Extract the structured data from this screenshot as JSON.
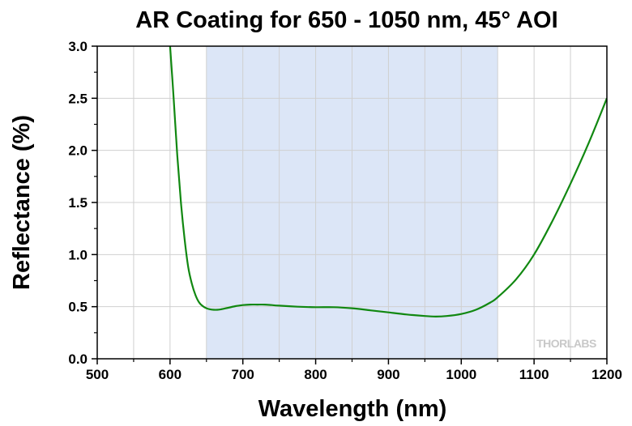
{
  "chart_data": {
    "type": "line",
    "title": "AR Coating for 650 - 1050 nm, 45° AOI",
    "xlabel": "Wavelength (nm)",
    "ylabel": "Reflectance (%)",
    "xlim": [
      500,
      1200
    ],
    "ylim": [
      0,
      3.0
    ],
    "x_ticks": [
      500,
      600,
      700,
      800,
      900,
      1000,
      1100,
      1200
    ],
    "y_ticks": [
      0.0,
      0.5,
      1.0,
      1.5,
      2.0,
      2.5,
      3.0
    ],
    "x_tick_labels": [
      "500",
      "600",
      "700",
      "800",
      "900",
      "1000",
      "1100",
      "1200"
    ],
    "y_tick_labels": [
      "0.0",
      "0.5",
      "1.0",
      "1.5",
      "2.0",
      "2.5",
      "3.0"
    ],
    "grid": true,
    "highlight_band": [
      650,
      1050
    ],
    "highlight_color": "#dce6f7",
    "line_color": "#118811",
    "watermark": "THORLABS",
    "series": [
      {
        "x": [
          600,
          605,
          610,
          615,
          620,
          625,
          630,
          635,
          640,
          645,
          650,
          655,
          660,
          665,
          670,
          680,
          690,
          700,
          710,
          720,
          730,
          740,
          750,
          775,
          800,
          825,
          850,
          875,
          900,
          925,
          950,
          965,
          980,
          1000,
          1020,
          1040,
          1050,
          1075,
          1100,
          1125,
          1150,
          1175,
          1200
        ],
        "y": [
          3.0,
          2.5,
          1.95,
          1.5,
          1.15,
          0.88,
          0.72,
          0.61,
          0.54,
          0.505,
          0.485,
          0.475,
          0.47,
          0.47,
          0.475,
          0.49,
          0.505,
          0.515,
          0.52,
          0.52,
          0.52,
          0.515,
          0.51,
          0.5,
          0.495,
          0.495,
          0.485,
          0.465,
          0.445,
          0.425,
          0.41,
          0.405,
          0.41,
          0.43,
          0.47,
          0.54,
          0.59,
          0.76,
          1.0,
          1.32,
          1.68,
          2.07,
          2.5
        ]
      }
    ]
  }
}
